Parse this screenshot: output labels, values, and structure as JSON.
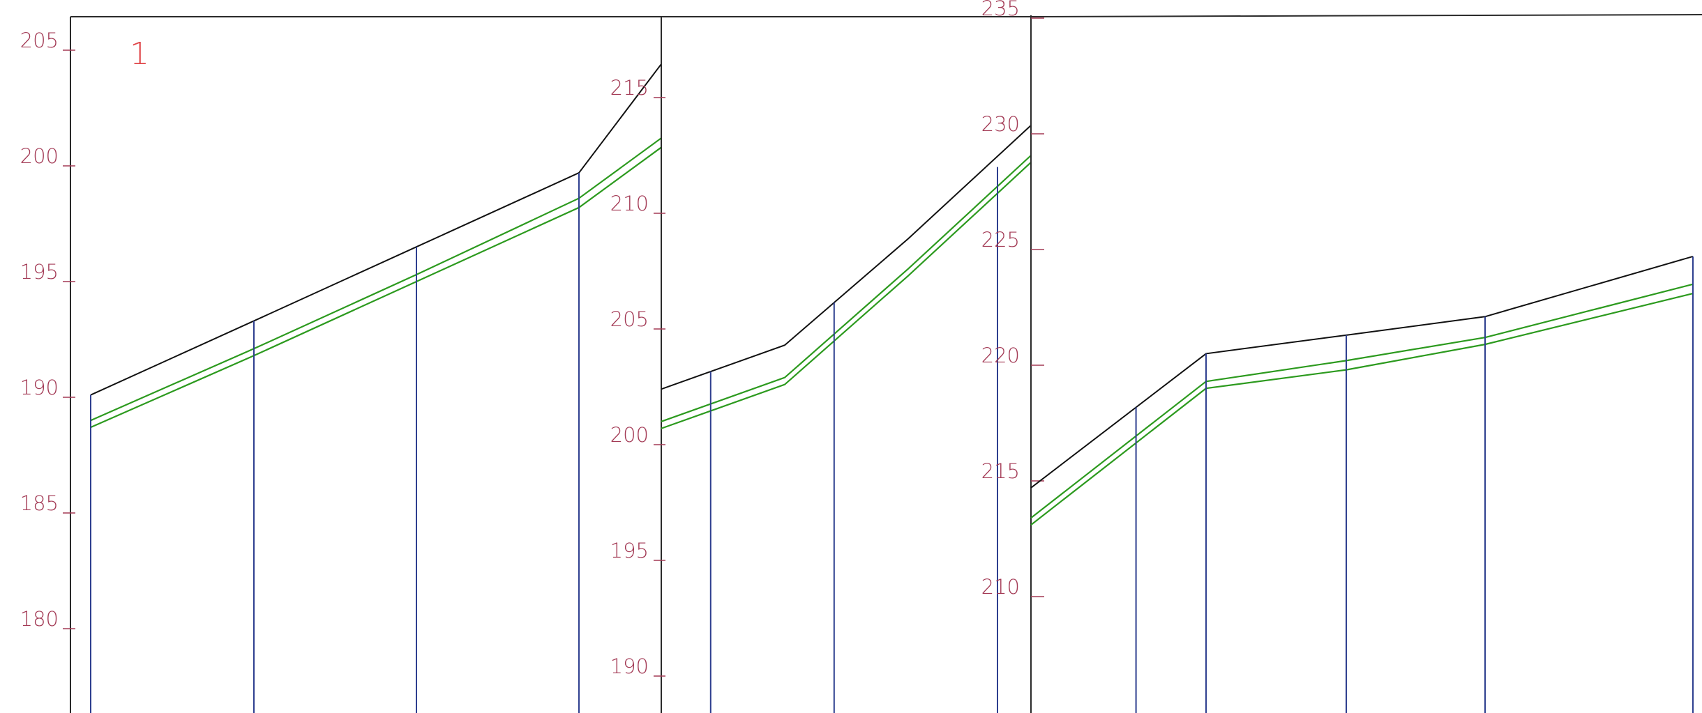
{
  "chart_data": [
    {
      "type": "line",
      "panel_label": "1",
      "y_ticks": [
        180,
        185,
        190,
        195,
        200,
        205
      ],
      "ylim": [
        177,
        208
      ],
      "stations": [
        0,
        1,
        2,
        3
      ],
      "series": [
        {
          "values": [
            190.1,
            193.3,
            196.5,
            199.7
          ]
        },
        {
          "values": [
            189.0,
            192.1,
            195.3,
            198.6
          ]
        },
        {
          "values": [
            188.7,
            191.8,
            195.0,
            198.2
          ]
        }
      ],
      "end_values": [
        204.4,
        201.2,
        200.8
      ],
      "vertical_markers_at": [
        0,
        1,
        2,
        3
      ]
    },
    {
      "type": "line",
      "y_ticks": [
        190,
        195,
        200,
        205,
        210,
        215
      ],
      "ylim": [
        188.4,
        219.1
      ],
      "stations": [
        0,
        1,
        2,
        3
      ],
      "series": [
        {
          "values": [
            202.4,
            204.3,
            208.9,
            213.8
          ]
        },
        {
          "values": [
            201.0,
            202.9,
            207.6,
            212.5
          ]
        },
        {
          "values": [
            200.7,
            202.6,
            207.3,
            212.2
          ]
        }
      ],
      "start_values": [
        202.4,
        201.0,
        200.7
      ],
      "vertical_markers_at": [
        0.4,
        1.4,
        2.4
      ]
    },
    {
      "type": "line",
      "y_ticks": [
        210,
        215,
        220,
        225,
        230,
        235
      ],
      "ylim": [
        205,
        235
      ],
      "stations": [
        0,
        1,
        2,
        3,
        4
      ],
      "series": [
        {
          "values": [
            214.7,
            220.5,
            221.3,
            222.1,
            224.7
          ]
        },
        {
          "values": [
            213.4,
            219.3,
            220.2,
            221.2,
            223.5
          ]
        },
        {
          "values": [
            213.1,
            219.0,
            219.8,
            220.9,
            223.1
          ]
        }
      ],
      "start_values": [
        214.7,
        213.4,
        213.1
      ],
      "stub_values": [
        231.0,
        230.1,
        229.8
      ],
      "vertical_markers_at": [
        0.6,
        1,
        2,
        3,
        4
      ]
    }
  ],
  "colors": {
    "axis": "#2a2a2a",
    "tick": "#a33a55",
    "panel_number": "#e0474a",
    "top_line": "#111111",
    "offset_lines": "#2c9a1e",
    "verticals": "#2e3f8f"
  }
}
